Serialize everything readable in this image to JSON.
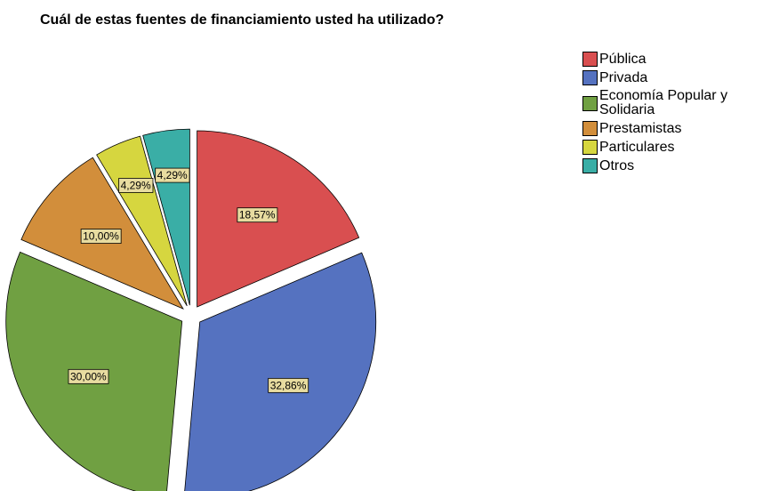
{
  "chart_data": {
    "type": "pie",
    "title": "Cuál de estas fuentes de financiamiento usted ha utilizado?",
    "categories": [
      "Pública",
      "Privada",
      "Economía Popular y Solidaria",
      "Prestamistas",
      "Particulares",
      "Otros"
    ],
    "values": [
      18.57,
      32.86,
      30.0,
      10.0,
      4.29,
      4.29
    ],
    "value_labels": [
      "18,57%",
      "32,86%",
      "30,00%",
      "10,00%",
      "4,29%",
      "4,29%"
    ],
    "colors": [
      "#d94f50",
      "#5572c0",
      "#70a042",
      "#d28e3b",
      "#d6d63f",
      "#3aaea6"
    ],
    "legend": "right"
  }
}
